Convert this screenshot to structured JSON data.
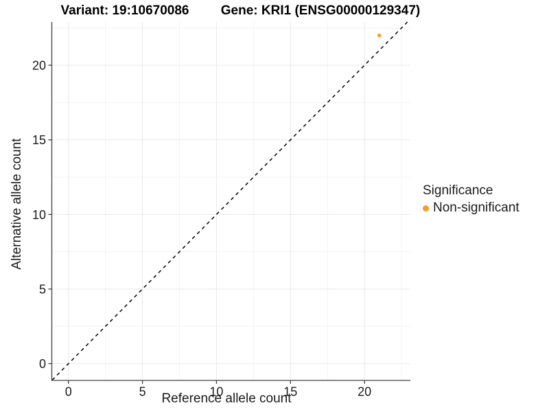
{
  "header": {
    "left_title": "Variant: 19:10670086",
    "right_title": "Gene: KRI1 (ENSG00000129347)"
  },
  "axes": {
    "x_label": "Reference allele count",
    "y_label": "Alternative allele count"
  },
  "legend": {
    "title": "Significance",
    "items": [
      {
        "label": "Non-significant",
        "color": "#F89C28"
      }
    ]
  },
  "colors": {
    "grid_major": "#E8E8E8",
    "grid_minor": "#F3F3F3",
    "axis_line": "#404040",
    "reference_line": "#000000",
    "point": "#F89C28",
    "text": "#1a1a1a"
  },
  "chart_data": {
    "type": "scatter",
    "title": "Variant: 19:10670086    Gene: KRI1 (ENSG00000129347)",
    "xlabel": "Reference allele count",
    "ylabel": "Alternative allele count",
    "xlim": [
      -1.1,
      23.1
    ],
    "ylim": [
      -1.1,
      22.9
    ],
    "x_ticks": [
      0,
      5,
      10,
      15,
      20
    ],
    "y_ticks": [
      0,
      5,
      10,
      15,
      20
    ],
    "x_minor_ticks": [
      2.5,
      7.5,
      12.5,
      17.5,
      22.5
    ],
    "y_minor_ticks": [
      2.5,
      7.5,
      12.5,
      17.5,
      22.5
    ],
    "grid": true,
    "legend_position": "right",
    "series": [
      {
        "name": "Non-significant",
        "color": "#F89C28",
        "points": [
          {
            "x": 21,
            "y": 22
          }
        ]
      }
    ],
    "reference_line": {
      "equation": "y = x",
      "style": "dashed",
      "color": "#000000"
    }
  }
}
